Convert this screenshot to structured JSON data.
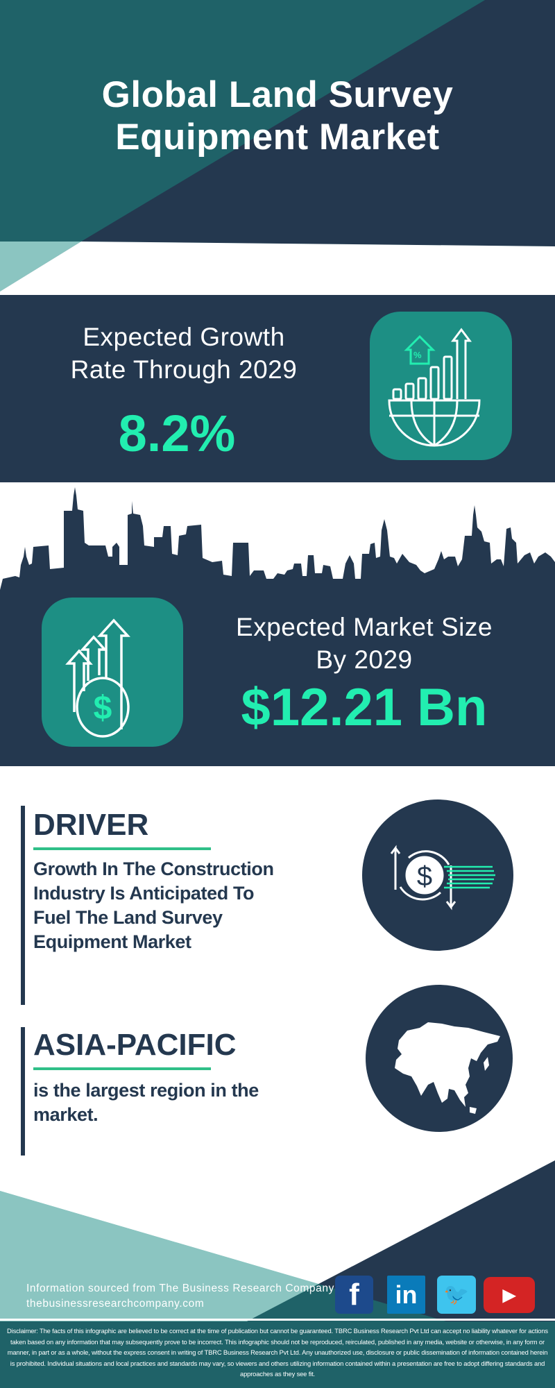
{
  "header": {
    "title_line1": "Global Land Survey",
    "title_line2": "Equipment Market"
  },
  "growth": {
    "label_line1": "Expected Growth",
    "label_line2": "Rate Through 2029",
    "value": "8.2%",
    "icon": "globe-growth-chart-icon"
  },
  "market_size": {
    "label_line1": "Expected Market Size",
    "label_line2": "By 2029",
    "value": "$12.21 Bn",
    "icon": "money-arrows-up-icon"
  },
  "driver": {
    "heading": "DRIVER",
    "lines": [
      "Growth In The Construction",
      "Industry Is Anticipated To",
      "Fuel The Land Survey",
      "Equipment Market"
    ],
    "icon": "dollar-exchange-icon"
  },
  "region": {
    "heading": "ASIA-PACIFIC",
    "lines": [
      "is the largest region in the",
      "market."
    ],
    "icon": "asia-map-icon"
  },
  "footer": {
    "source": "Information sourced from The Business Research Company",
    "website": "thebusinessresearchcompany.com",
    "social": [
      {
        "name": "facebook",
        "glyph": "f",
        "color": "#1d4a8c"
      },
      {
        "name": "linkedin",
        "glyph": "in",
        "color": "#0a7bba"
      },
      {
        "name": "twitter",
        "glyph": "🐦",
        "color": "#3ec4ee"
      },
      {
        "name": "youtube",
        "glyph": "▶",
        "color": "#d42424"
      }
    ],
    "disclaimer": "Disclaimer: The facts of this infographic are believed to be correct at the time of publication but cannot be guaranteed. TBRC Business Research Pvt Ltd can accept no liability whatever for actions taken based on any information that may subsequently prove to be incorrect. This infographic should not be reproduced, reirculated, published in any media, website or otherwise, in any form or manner, in part or as a whole, without the express consent in writing of TBRC Business Research Pvt Ltd. Any unauthorized use, disclosure or public dissemination of information contained herein is prohibited. Individual situations and local practices and standards may vary, so viewers and others utilizing information contained within a presentation are free to adopt differing standards and approaches as they see fit."
  },
  "colors": {
    "navy": "#24384f",
    "teal": "#1f6268",
    "light_teal": "#8bc5c1",
    "accent": "#22eeb0",
    "icon_bg": "#1d8f84"
  }
}
